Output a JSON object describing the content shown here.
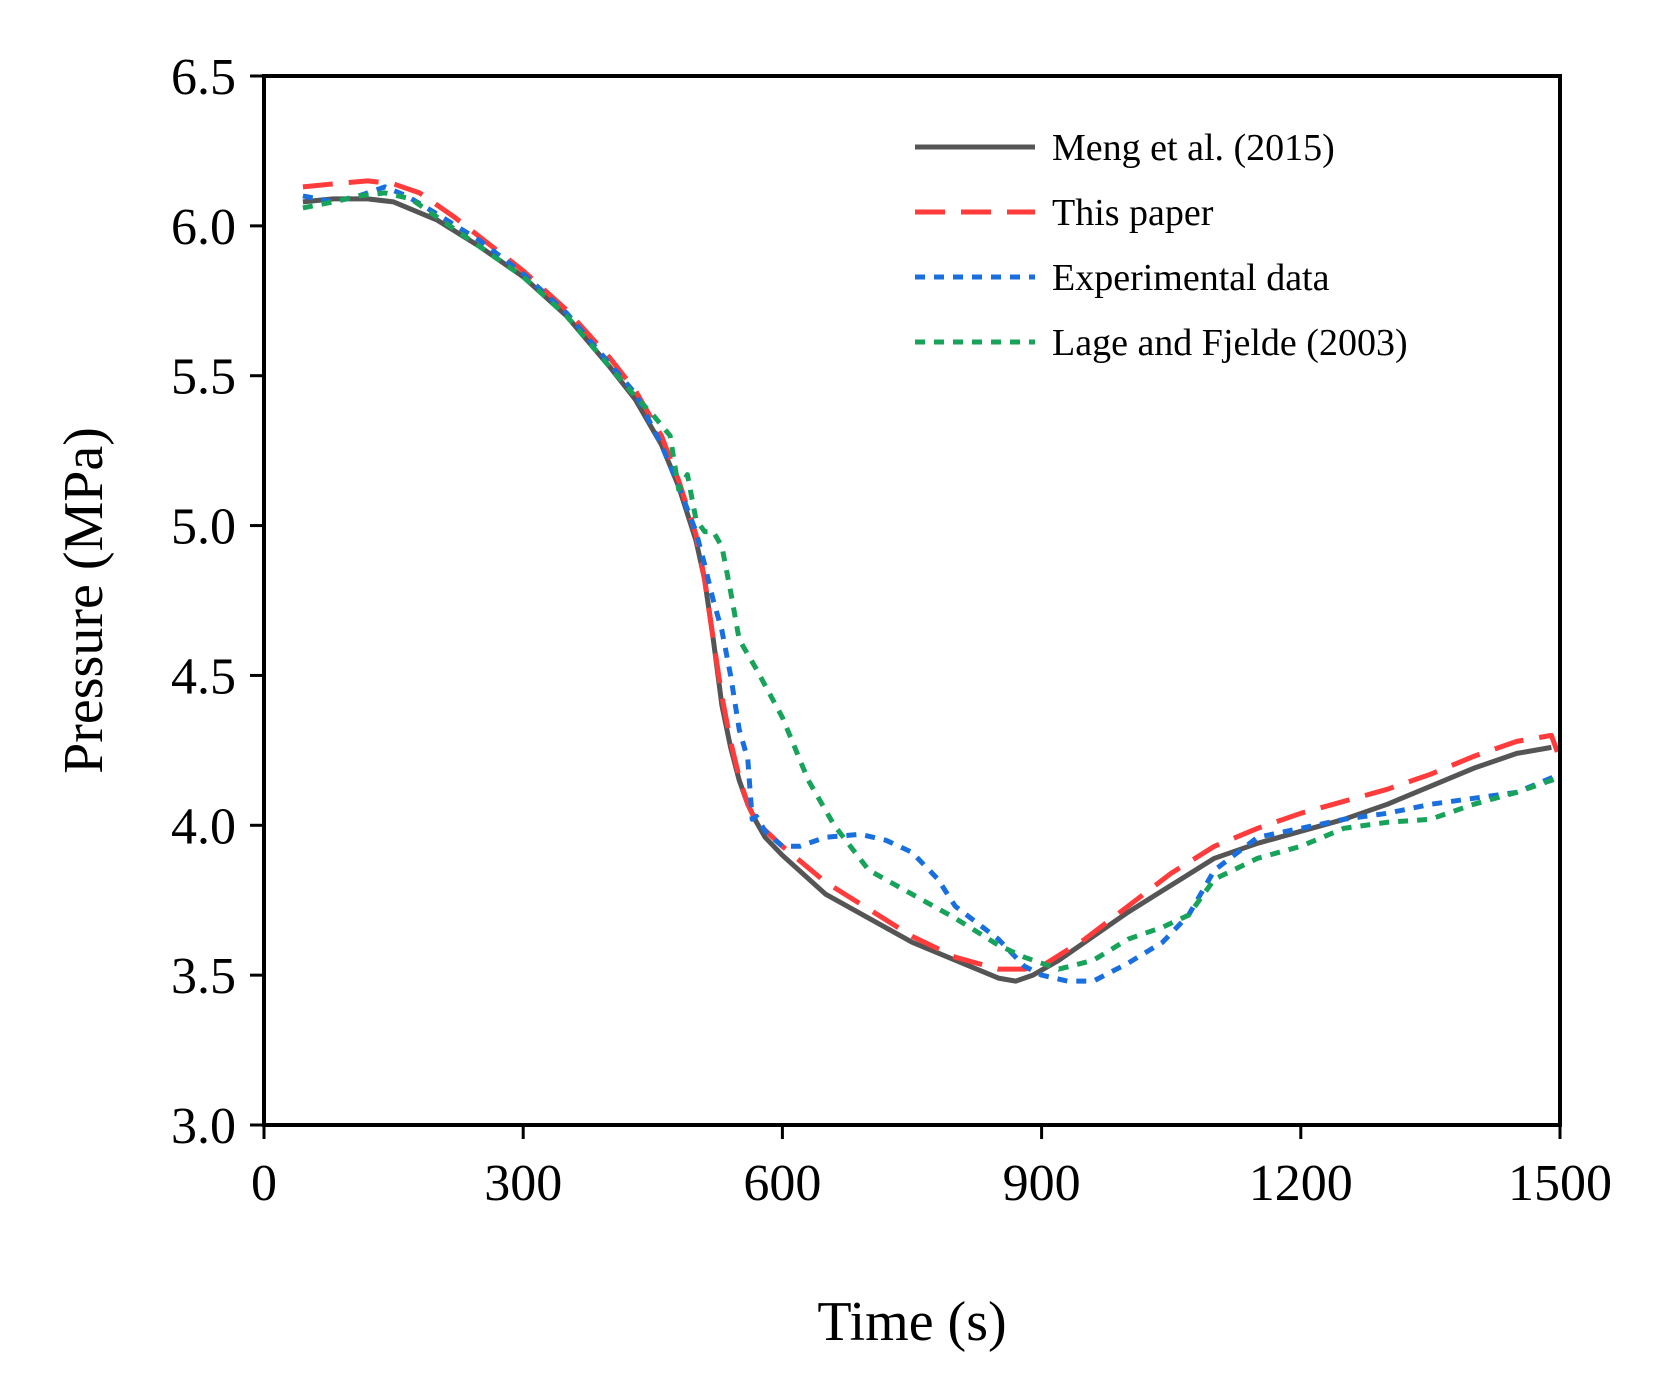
{
  "chart_data": {
    "type": "line",
    "title": "",
    "xlabel": "Time (s)",
    "ylabel": "Pressure (MPa)",
    "xlim": [
      0,
      1500
    ],
    "ylim": [
      3.0,
      6.5
    ],
    "xticks": [
      0,
      300,
      600,
      900,
      1200,
      1500
    ],
    "yticks": [
      3.0,
      3.5,
      4.0,
      4.5,
      5.0,
      5.5,
      6.0,
      6.5
    ],
    "xtick_labels": [
      "0",
      "300",
      "600",
      "900",
      "1200",
      "1500"
    ],
    "ytick_labels": [
      "3.0",
      "3.5",
      "4.0",
      "4.5",
      "5.0",
      "5.5",
      "6.0",
      "6.5"
    ],
    "grid": false,
    "legend_position": "top-right",
    "series": [
      {
        "name": "Meng et al. (2015)",
        "color": "#555555",
        "style": "solid",
        "x": [
          45,
          80,
          120,
          150,
          200,
          250,
          300,
          350,
          400,
          430,
          460,
          480,
          500,
          510,
          520,
          530,
          540,
          550,
          560,
          570,
          580,
          600,
          650,
          700,
          750,
          800,
          850,
          870,
          890,
          920,
          950,
          1000,
          1050,
          1100,
          1150,
          1200,
          1250,
          1300,
          1350,
          1400,
          1450,
          1490
        ],
        "y": [
          6.08,
          6.09,
          6.09,
          6.08,
          6.02,
          5.93,
          5.83,
          5.7,
          5.53,
          5.42,
          5.27,
          5.13,
          4.95,
          4.82,
          4.62,
          4.4,
          4.26,
          4.15,
          4.07,
          4.01,
          3.96,
          3.9,
          3.77,
          3.69,
          3.61,
          3.55,
          3.49,
          3.48,
          3.5,
          3.55,
          3.61,
          3.71,
          3.8,
          3.89,
          3.94,
          3.98,
          4.02,
          4.07,
          4.13,
          4.19,
          4.24,
          4.26
        ]
      },
      {
        "name": "This paper",
        "color": "#ff3b3b",
        "style": "dashed",
        "x": [
          45,
          80,
          120,
          150,
          180,
          220,
          260,
          300,
          350,
          400,
          430,
          460,
          480,
          500,
          510,
          520,
          530,
          540,
          550,
          560,
          570,
          600,
          650,
          700,
          750,
          800,
          850,
          880,
          900,
          950,
          1000,
          1050,
          1100,
          1150,
          1200,
          1250,
          1300,
          1350,
          1400,
          1450,
          1490,
          1500
        ],
        "y": [
          6.13,
          6.14,
          6.15,
          6.14,
          6.11,
          6.03,
          5.94,
          5.85,
          5.72,
          5.56,
          5.45,
          5.3,
          5.15,
          4.97,
          4.82,
          4.62,
          4.43,
          4.28,
          4.16,
          4.07,
          4.01,
          3.93,
          3.81,
          3.72,
          3.63,
          3.56,
          3.52,
          3.52,
          3.53,
          3.62,
          3.73,
          3.84,
          3.93,
          3.99,
          4.04,
          4.08,
          4.12,
          4.17,
          4.23,
          4.28,
          4.3,
          4.22
        ]
      },
      {
        "name": "Experimental data",
        "color": "#1a6fdf",
        "style": "dotted",
        "x": [
          45,
          80,
          110,
          140,
          165,
          200,
          250,
          300,
          350,
          400,
          430,
          460,
          480,
          500,
          510,
          520,
          530,
          540,
          550,
          560,
          565,
          570,
          580,
          600,
          620,
          650,
          690,
          720,
          750,
          780,
          800,
          850,
          880,
          900,
          930,
          960,
          1000,
          1040,
          1070,
          1100,
          1150,
          1200,
          1250,
          1300,
          1350,
          1400,
          1450,
          1500
        ],
        "y": [
          6.1,
          6.08,
          6.1,
          6.13,
          6.1,
          6.04,
          5.95,
          5.84,
          5.71,
          5.54,
          5.44,
          5.27,
          5.13,
          4.98,
          4.87,
          4.75,
          4.65,
          4.5,
          4.32,
          4.22,
          4.02,
          4.03,
          3.98,
          3.93,
          3.93,
          3.96,
          3.97,
          3.95,
          3.91,
          3.82,
          3.73,
          3.62,
          3.53,
          3.5,
          3.48,
          3.48,
          3.54,
          3.61,
          3.7,
          3.85,
          3.96,
          3.99,
          4.02,
          4.04,
          4.07,
          4.09,
          4.11,
          4.17
        ]
      },
      {
        "name": "Lage and Fjelde (2003)",
        "color": "#17a35a",
        "style": "dotted",
        "x": [
          45,
          80,
          110,
          140,
          170,
          200,
          250,
          300,
          350,
          400,
          430,
          450,
          470,
          480,
          490,
          500,
          510,
          520,
          530,
          540,
          550,
          570,
          600,
          630,
          660,
          700,
          750,
          800,
          850,
          880,
          900,
          920,
          960,
          1000,
          1040,
          1070,
          1100,
          1150,
          1200,
          1250,
          1300,
          1350,
          1400,
          1450,
          1500
        ],
        "y": [
          6.06,
          6.08,
          6.1,
          6.11,
          6.09,
          6.03,
          5.93,
          5.83,
          5.7,
          5.53,
          5.43,
          5.37,
          5.3,
          5.12,
          5.17,
          5.02,
          4.98,
          4.98,
          4.93,
          4.78,
          4.62,
          4.52,
          4.36,
          4.15,
          4.0,
          3.85,
          3.77,
          3.69,
          3.6,
          3.56,
          3.54,
          3.52,
          3.55,
          3.62,
          3.66,
          3.7,
          3.82,
          3.89,
          3.93,
          3.99,
          4.01,
          4.02,
          4.07,
          4.11,
          4.16
        ]
      }
    ]
  }
}
